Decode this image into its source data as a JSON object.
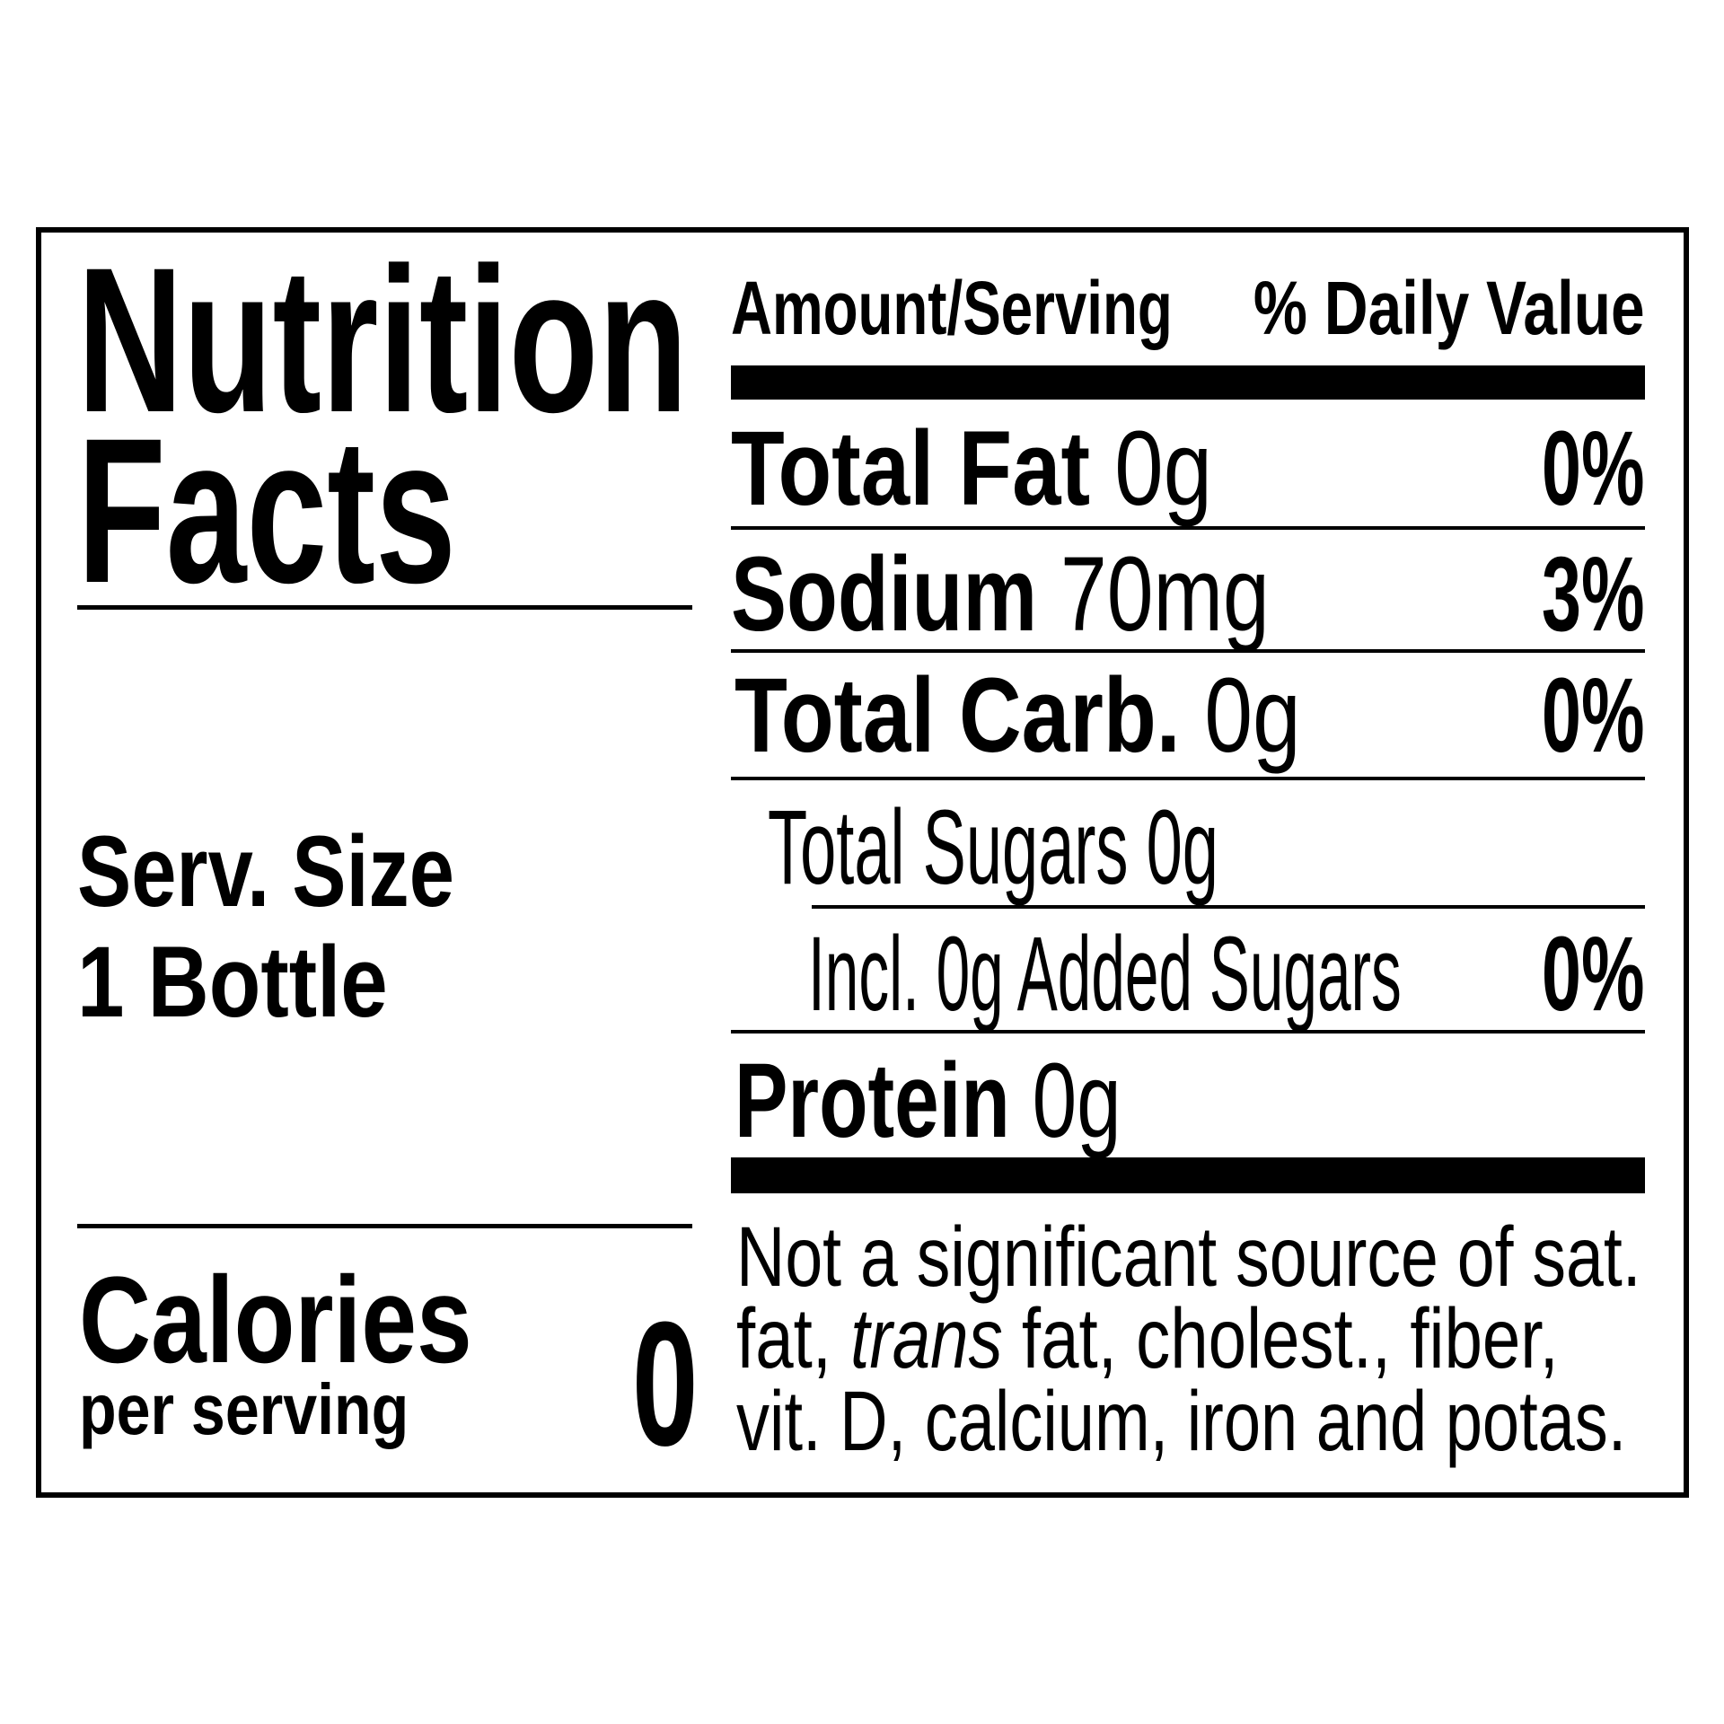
{
  "title": {
    "line1": "Nutrition",
    "line2": "Facts"
  },
  "serving": {
    "label": "Serv. Size",
    "value": "1 Bottle"
  },
  "calories": {
    "label": "Calories",
    "sublabel": "per serving",
    "value": "0"
  },
  "header": {
    "amount": "Amount/Serving",
    "daily_value": "% Daily Value"
  },
  "nutrients": [
    {
      "name": "Total Fat",
      "amount": "0g",
      "dv": "0%"
    },
    {
      "name": "Sodium",
      "amount": "70mg",
      "dv": "3%"
    },
    {
      "name": "Total Carb.",
      "amount": "0g",
      "dv": "0%"
    },
    {
      "name": "Total Sugars 0g"
    },
    {
      "name": "Incl. 0g Added Sugars",
      "dv": "0%"
    },
    {
      "name": "Protein",
      "amount": "0g"
    }
  ],
  "footnote": {
    "line1": "Not a significant source of sat.",
    "line2_a": "fat, ",
    "line2_italic": "trans",
    "line2_b": " fat, cholest., fiber,",
    "line3": "vit. D, calcium, iron and potas."
  }
}
